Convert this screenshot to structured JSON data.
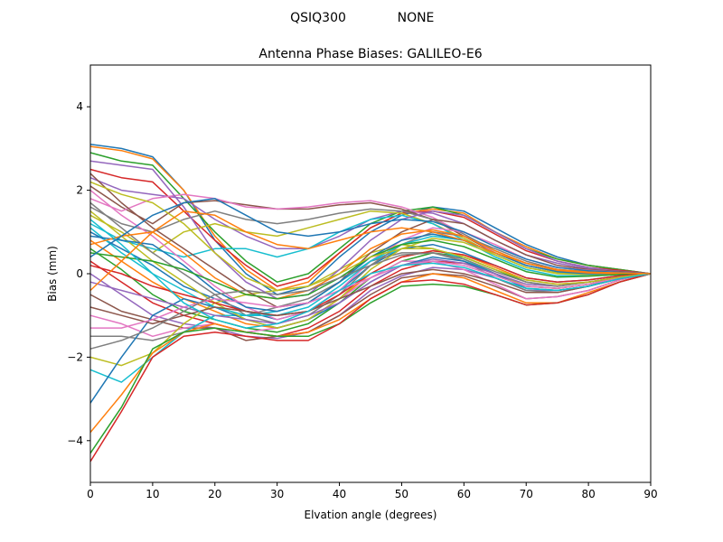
{
  "figure": {
    "suptitle_left": "QSIQ300",
    "suptitle_right": "NONE"
  },
  "chart_data": {
    "type": "line",
    "title": "Antenna Phase Biases: GALILEO-E6",
    "xlabel": "Elvation angle (degrees)",
    "ylabel": "Bias (mm)",
    "xlim": [
      0,
      90
    ],
    "ylim": [
      -5,
      5
    ],
    "xticks": [
      0,
      10,
      20,
      30,
      40,
      50,
      60,
      70,
      80,
      90
    ],
    "yticks": [
      -4,
      -2,
      0,
      2,
      4
    ],
    "grid": false,
    "legend": "none",
    "x": [
      0,
      5,
      10,
      15,
      20,
      25,
      30,
      35,
      40,
      45,
      50,
      55,
      60,
      65,
      70,
      75,
      80,
      85,
      90
    ],
    "palette": [
      "#1f77b4",
      "#ff7f0e",
      "#2ca02c",
      "#d62728",
      "#9467bd",
      "#8c564b",
      "#e377c2",
      "#7f7f7f",
      "#bcbd22",
      "#17becf"
    ],
    "series": [
      {
        "values": [
          3.1,
          3.0,
          2.8,
          2.0,
          0.8,
          0.0,
          -0.5,
          -0.3,
          0.4,
          1.0,
          1.4,
          1.6,
          1.5,
          1.1,
          0.7,
          0.4,
          0.2,
          0.1,
          0.0
        ]
      },
      {
        "values": [
          3.05,
          2.95,
          2.75,
          2.0,
          0.9,
          0.1,
          -0.4,
          -0.2,
          0.5,
          1.1,
          1.45,
          1.55,
          1.45,
          1.0,
          0.65,
          0.35,
          0.2,
          0.1,
          0.0
        ]
      },
      {
        "values": [
          2.9,
          2.7,
          2.6,
          1.8,
          1.0,
          0.3,
          -0.2,
          0.0,
          0.6,
          1.2,
          1.5,
          1.6,
          1.4,
          1.0,
          0.6,
          0.35,
          0.2,
          0.1,
          0.0
        ]
      },
      {
        "values": [
          2.5,
          2.3,
          2.2,
          1.5,
          0.8,
          0.2,
          -0.3,
          -0.1,
          0.5,
          1.1,
          1.45,
          1.5,
          1.35,
          0.95,
          0.55,
          0.3,
          0.15,
          0.08,
          0.0
        ]
      },
      {
        "values": [
          2.3,
          2.0,
          1.9,
          1.8,
          1.3,
          0.9,
          0.6,
          0.6,
          0.9,
          1.3,
          1.5,
          1.45,
          1.2,
          0.8,
          0.45,
          0.25,
          0.12,
          0.06,
          0.0
        ]
      },
      {
        "values": [
          2.1,
          1.6,
          1.2,
          1.7,
          1.75,
          1.65,
          1.55,
          1.55,
          1.65,
          1.7,
          1.55,
          1.3,
          0.9,
          0.5,
          0.2,
          0.05,
          0.0,
          0.0,
          0.0
        ]
      },
      {
        "values": [
          1.8,
          1.5,
          1.8,
          1.9,
          1.8,
          1.6,
          1.55,
          1.6,
          1.7,
          1.75,
          1.6,
          1.35,
          0.95,
          0.5,
          0.2,
          0.05,
          0.0,
          0.0,
          0.0
        ]
      },
      {
        "values": [
          1.6,
          1.2,
          1.0,
          1.3,
          1.5,
          1.3,
          1.2,
          1.3,
          1.45,
          1.55,
          1.5,
          1.3,
          0.95,
          0.55,
          0.25,
          0.08,
          0.02,
          0.0,
          0.0
        ]
      },
      {
        "values": [
          1.4,
          1.0,
          0.5,
          1.0,
          1.2,
          1.0,
          0.9,
          1.1,
          1.3,
          1.5,
          1.45,
          1.2,
          0.85,
          0.45,
          0.15,
          0.02,
          -0.02,
          0.0,
          0.0
        ]
      },
      {
        "values": [
          1.2,
          0.8,
          0.6,
          0.4,
          0.6,
          0.6,
          0.4,
          0.6,
          1.0,
          1.3,
          1.4,
          1.2,
          0.8,
          0.4,
          0.1,
          -0.05,
          -0.05,
          -0.02,
          0.0
        ]
      },
      {
        "values": [
          1.0,
          0.6,
          0.2,
          -0.3,
          -0.6,
          -0.9,
          -1.1,
          -0.9,
          -0.4,
          0.2,
          0.6,
          0.7,
          0.5,
          0.2,
          -0.1,
          -0.2,
          -0.15,
          -0.05,
          0.0
        ]
      },
      {
        "values": [
          0.8,
          0.3,
          -0.2,
          -0.6,
          -0.9,
          -1.2,
          -1.3,
          -1.1,
          -0.6,
          0.0,
          0.4,
          0.55,
          0.45,
          0.15,
          -0.15,
          -0.25,
          -0.2,
          -0.08,
          0.0
        ]
      },
      {
        "values": [
          0.6,
          0.1,
          -0.5,
          -0.9,
          -1.1,
          -1.3,
          -1.4,
          -1.2,
          -0.7,
          -0.1,
          0.3,
          0.5,
          0.4,
          0.1,
          -0.2,
          -0.3,
          -0.2,
          -0.1,
          0.0
        ]
      },
      {
        "values": [
          0.3,
          -0.2,
          -0.7,
          -1.0,
          -1.2,
          -1.4,
          -1.5,
          -1.3,
          -0.9,
          -0.3,
          0.1,
          0.3,
          0.25,
          0.0,
          -0.3,
          -0.35,
          -0.25,
          -0.1,
          0.0
        ]
      },
      {
        "values": [
          0.0,
          -0.5,
          -1.0,
          -1.2,
          -1.3,
          -1.5,
          -1.55,
          -1.4,
          -1.0,
          -0.4,
          -0.05,
          0.15,
          0.1,
          -0.1,
          -0.4,
          -0.4,
          -0.3,
          -0.12,
          0.0
        ]
      },
      {
        "values": [
          -0.5,
          -0.9,
          -1.1,
          -1.3,
          -1.3,
          -1.6,
          -1.5,
          -1.4,
          -1.0,
          -0.5,
          -0.1,
          0.0,
          -0.05,
          -0.3,
          -0.6,
          -0.55,
          -0.4,
          -0.15,
          0.0
        ]
      },
      {
        "values": [
          -1.0,
          -1.2,
          -1.5,
          -1.3,
          -1.2,
          -1.4,
          -1.3,
          -1.1,
          -0.6,
          -0.1,
          0.3,
          0.3,
          0.1,
          -0.25,
          -0.6,
          -0.55,
          -0.4,
          -0.15,
          0.0
        ]
      },
      {
        "values": [
          -1.5,
          -1.5,
          -1.6,
          -1.4,
          -1.0,
          -1.0,
          -0.8,
          -0.6,
          -0.2,
          0.3,
          0.5,
          0.5,
          0.3,
          -0.1,
          -0.4,
          -0.45,
          -0.3,
          -0.12,
          0.0
        ]
      },
      {
        "values": [
          -2.0,
          -2.2,
          -1.9,
          -1.2,
          -0.7,
          -0.5,
          -0.4,
          -0.3,
          0.1,
          0.5,
          0.7,
          0.6,
          0.35,
          0.0,
          -0.3,
          -0.35,
          -0.25,
          -0.1,
          0.0
        ]
      },
      {
        "values": [
          -2.3,
          -2.6,
          -2.0,
          -1.4,
          -1.0,
          -1.0,
          -0.9,
          -0.7,
          -0.2,
          0.3,
          0.6,
          0.6,
          0.35,
          0.0,
          -0.35,
          -0.4,
          -0.3,
          -0.1,
          0.0
        ]
      },
      {
        "values": [
          -3.1,
          -2.0,
          -1.0,
          -0.6,
          -0.8,
          -1.1,
          -1.3,
          -1.1,
          -0.7,
          -0.2,
          0.2,
          0.4,
          0.3,
          0.0,
          -0.35,
          -0.4,
          -0.3,
          -0.1,
          0.0
        ]
      },
      {
        "values": [
          -3.8,
          -2.9,
          -1.9,
          -1.4,
          -1.2,
          -1.4,
          -1.5,
          -1.4,
          -1.1,
          -0.6,
          -0.2,
          0.0,
          -0.1,
          -0.4,
          -0.7,
          -0.7,
          -0.45,
          -0.2,
          0.0
        ]
      },
      {
        "values": [
          -4.3,
          -3.2,
          -1.8,
          -1.4,
          -1.3,
          -1.4,
          -1.5,
          -1.5,
          -1.2,
          -0.7,
          -0.3,
          -0.25,
          -0.3,
          -0.5,
          -0.75,
          -0.7,
          -0.5,
          -0.2,
          0.0
        ]
      },
      {
        "values": [
          -4.5,
          -3.3,
          -2.0,
          -1.5,
          -1.4,
          -1.5,
          -1.6,
          -1.6,
          -1.2,
          -0.6,
          -0.2,
          -0.15,
          -0.25,
          -0.5,
          -0.75,
          -0.7,
          -0.5,
          -0.2,
          0.0
        ]
      },
      {
        "values": [
          2.7,
          2.6,
          2.5,
          1.6,
          0.5,
          -0.2,
          -0.6,
          -0.5,
          0.1,
          0.8,
          1.3,
          1.5,
          1.4,
          1.0,
          0.6,
          0.3,
          0.15,
          0.05,
          0.0
        ]
      },
      {
        "values": [
          2.4,
          1.7,
          1.1,
          0.6,
          0.1,
          -0.4,
          -0.8,
          -0.7,
          -0.2,
          0.5,
          1.0,
          1.3,
          1.2,
          0.8,
          0.45,
          0.2,
          0.1,
          0.05,
          0.0
        ]
      },
      {
        "values": [
          2.0,
          1.4,
          0.9,
          0.3,
          -0.3,
          -0.8,
          -1.1,
          -0.9,
          -0.4,
          0.3,
          0.8,
          1.1,
          1.0,
          0.7,
          0.35,
          0.15,
          0.08,
          0.03,
          0.0
        ]
      },
      {
        "values": [
          1.7,
          1.1,
          0.5,
          0.0,
          -0.5,
          -1.0,
          -1.2,
          -1.0,
          -0.5,
          0.2,
          0.7,
          1.0,
          0.9,
          0.6,
          0.3,
          0.1,
          0.05,
          0.02,
          0.0
        ]
      },
      {
        "values": [
          1.5,
          0.9,
          0.3,
          -0.2,
          -0.7,
          -1.1,
          -1.3,
          -1.1,
          -0.6,
          0.1,
          0.6,
          0.85,
          0.75,
          0.45,
          0.15,
          0.0,
          -0.02,
          0.0,
          0.0
        ]
      },
      {
        "values": [
          1.1,
          0.5,
          0.0,
          -0.4,
          -0.8,
          -1.0,
          -1.0,
          -0.8,
          -0.3,
          0.3,
          0.7,
          0.9,
          0.8,
          0.5,
          0.2,
          0.05,
          0.0,
          0.0,
          0.0
        ]
      },
      {
        "values": [
          0.9,
          0.8,
          0.7,
          0.2,
          -0.4,
          -0.8,
          -0.9,
          -0.7,
          -0.2,
          0.4,
          0.8,
          0.95,
          0.8,
          0.5,
          0.2,
          0.05,
          0.0,
          0.0,
          0.0
        ]
      },
      {
        "values": [
          0.7,
          0.9,
          1.0,
          0.5,
          -0.1,
          -0.5,
          -0.6,
          -0.4,
          0.0,
          0.6,
          0.95,
          1.05,
          0.9,
          0.55,
          0.25,
          0.08,
          0.02,
          0.0,
          0.0
        ]
      },
      {
        "values": [
          0.5,
          0.4,
          0.3,
          0.1,
          -0.2,
          -0.5,
          -0.6,
          -0.5,
          -0.1,
          0.4,
          0.7,
          0.8,
          0.65,
          0.35,
          0.05,
          -0.08,
          -0.06,
          -0.02,
          0.0
        ]
      },
      {
        "values": [
          0.2,
          0.0,
          -0.3,
          -0.5,
          -0.7,
          -0.9,
          -1.0,
          -0.9,
          -0.5,
          0.0,
          0.4,
          0.55,
          0.45,
          0.2,
          -0.1,
          -0.2,
          -0.15,
          -0.05,
          0.0
        ]
      },
      {
        "values": [
          -0.2,
          -0.4,
          -0.6,
          -0.8,
          -1.0,
          -1.1,
          -1.2,
          -1.0,
          -0.7,
          -0.2,
          0.2,
          0.35,
          0.25,
          0.0,
          -0.25,
          -0.3,
          -0.2,
          -0.08,
          0.0
        ]
      },
      {
        "values": [
          -0.8,
          -1.0,
          -1.2,
          -1.0,
          -0.8,
          -0.9,
          -1.0,
          -0.9,
          -0.6,
          -0.3,
          0.0,
          0.1,
          0.0,
          -0.2,
          -0.45,
          -0.45,
          -0.3,
          -0.12,
          0.0
        ]
      },
      {
        "values": [
          -1.3,
          -1.3,
          -1.1,
          -0.8,
          -0.6,
          -0.7,
          -0.8,
          -0.7,
          -0.4,
          -0.1,
          0.2,
          0.3,
          0.2,
          -0.05,
          -0.3,
          -0.35,
          -0.25,
          -0.1,
          0.0
        ]
      },
      {
        "values": [
          -1.8,
          -1.6,
          -1.3,
          -0.9,
          -0.5,
          -0.4,
          -0.5,
          -0.4,
          -0.1,
          0.2,
          0.45,
          0.5,
          0.35,
          0.05,
          -0.2,
          -0.3,
          -0.2,
          -0.08,
          0.0
        ]
      },
      {
        "values": [
          2.2,
          1.9,
          1.7,
          1.2,
          0.5,
          -0.1,
          -0.4,
          -0.3,
          0.0,
          0.4,
          0.6,
          0.6,
          0.4,
          0.1,
          -0.15,
          -0.25,
          -0.2,
          -0.08,
          0.0
        ]
      },
      {
        "values": [
          1.3,
          0.7,
          0.0,
          -0.7,
          -1.1,
          -1.3,
          -1.2,
          -0.9,
          -0.4,
          0.0,
          0.2,
          0.25,
          0.15,
          -0.1,
          -0.35,
          -0.4,
          -0.3,
          -0.12,
          0.0
        ]
      },
      {
        "values": [
          0.4,
          0.9,
          1.4,
          1.7,
          1.8,
          1.4,
          1.0,
          0.9,
          1.0,
          1.2,
          1.3,
          1.25,
          1.0,
          0.65,
          0.35,
          0.15,
          0.07,
          0.03,
          0.0
        ]
      },
      {
        "values": [
          -0.4,
          0.3,
          1.0,
          1.5,
          1.4,
          1.0,
          0.7,
          0.6,
          0.8,
          1.0,
          1.1,
          1.0,
          0.8,
          0.5,
          0.25,
          0.1,
          0.04,
          0.02,
          0.0
        ]
      }
    ]
  }
}
